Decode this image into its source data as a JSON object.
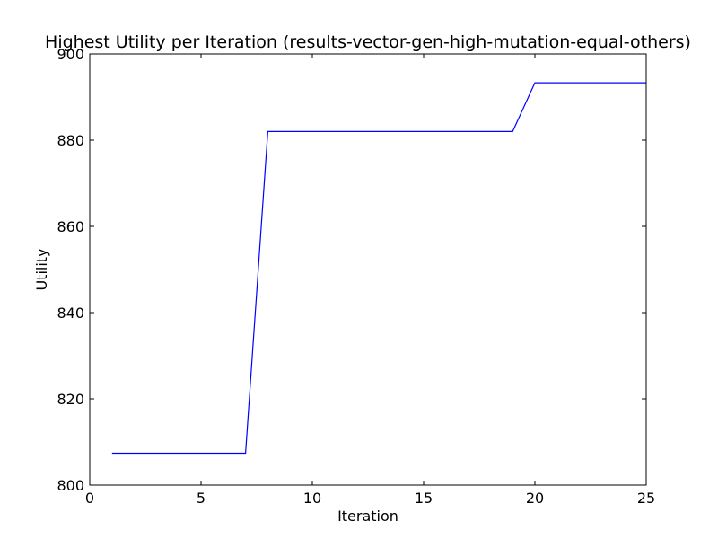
{
  "chart_data": {
    "type": "line",
    "title": "Highest Utility per Iteration (results-vector-gen-high-mutation-equal-others)",
    "xlabel": "Iteration",
    "ylabel": "Utility",
    "xlim": [
      0,
      25
    ],
    "ylim": [
      800,
      900
    ],
    "xticks": [
      0,
      5,
      10,
      15,
      20,
      25
    ],
    "yticks": [
      800,
      820,
      840,
      860,
      880,
      900
    ],
    "grid": false,
    "legend": "none",
    "series": [
      {
        "color": "#0000ff",
        "x": [
          1,
          2,
          3,
          4,
          5,
          6,
          7,
          8,
          9,
          10,
          11,
          12,
          13,
          14,
          15,
          16,
          17,
          18,
          19,
          20,
          21,
          22,
          23,
          24,
          25
        ],
        "y": [
          807.4,
          807.4,
          807.4,
          807.4,
          807.4,
          807.4,
          807.4,
          882.0,
          882.0,
          882.0,
          882.0,
          882.0,
          882.0,
          882.0,
          882.0,
          882.0,
          882.0,
          882.0,
          882.0,
          893.3,
          893.3,
          893.3,
          893.3,
          893.3,
          893.3
        ]
      }
    ]
  }
}
